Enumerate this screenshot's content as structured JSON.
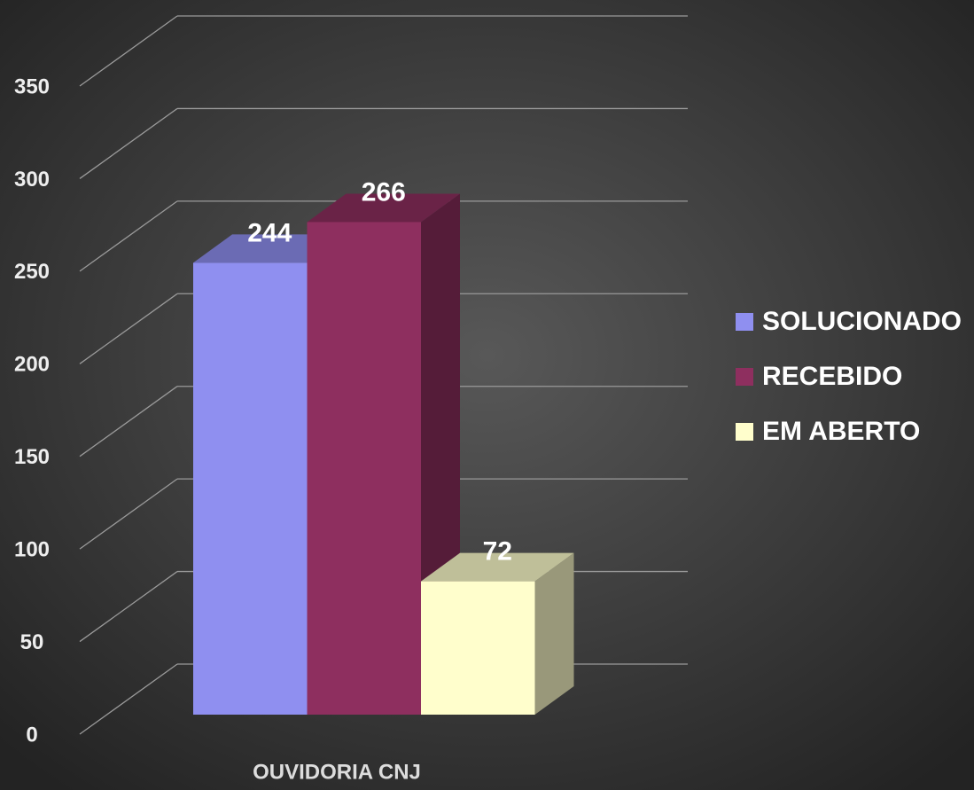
{
  "chart_data": {
    "type": "bar3d",
    "categories": [
      "OUVIDORIA CNJ"
    ],
    "series": [
      {
        "name": "SOLUCIONADO",
        "color": "#8f8ff0",
        "values": [
          244
        ]
      },
      {
        "name": "RECEBIDO",
        "color": "#8e2f5f",
        "values": [
          266
        ]
      },
      {
        "name": "EM ABERTO",
        "color": "#fffecc",
        "values": [
          72
        ]
      }
    ],
    "ylim": [
      0,
      350
    ],
    "yticks": [
      0,
      50,
      100,
      150,
      200,
      250,
      300,
      350
    ],
    "grid": true,
    "legend": "right"
  }
}
